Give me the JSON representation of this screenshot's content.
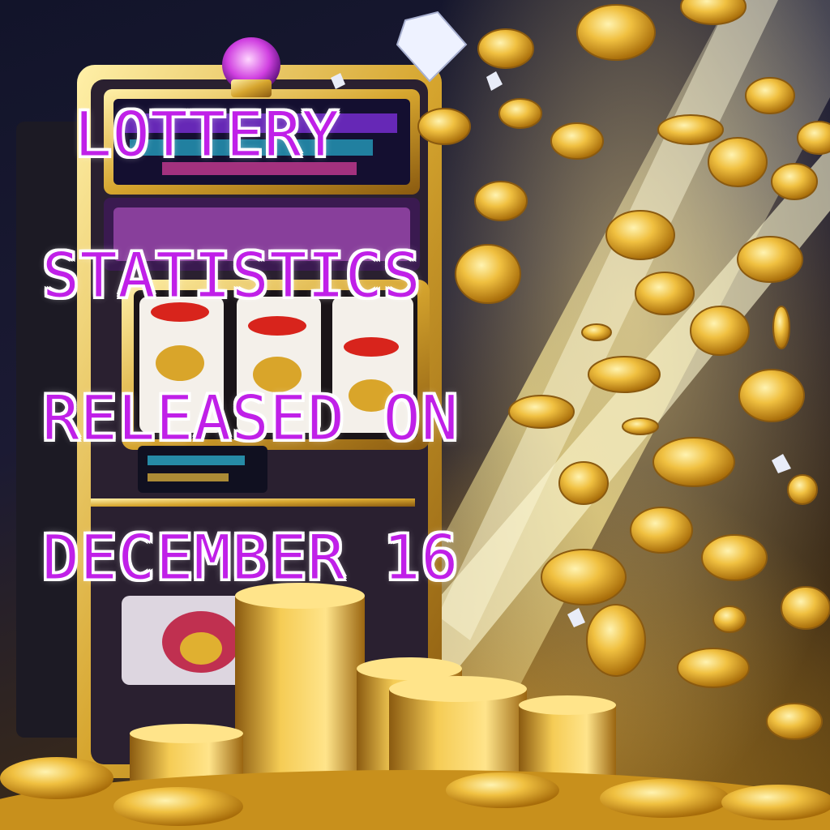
{
  "headline": {
    "line1": "LOTTERY",
    "line2": "STATISTICS",
    "line3": "RELEASED ON",
    "line4": "DECEMBER 16"
  },
  "palette": {
    "text_fill": "#c020e8",
    "text_outline": "#ffffff",
    "coin_gold": "#e8b12a",
    "machine_gold": "#d6a52e",
    "background_dark": "#12142a"
  },
  "illustration": {
    "subject": "slot machine with three reels, exploding stream of gold coins and diamonds",
    "icons": [
      "slot-machine-icon",
      "gold-coin-icon",
      "diamond-icon",
      "light-burst-icon"
    ]
  }
}
